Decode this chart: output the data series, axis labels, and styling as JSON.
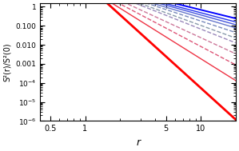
{
  "xlabel": "r",
  "ylabel": "S²(r)/S²(0)",
  "xlim": [
    0.41,
    20
  ],
  "ylim": [
    1e-06,
    1.5
  ],
  "figsize": [
    2.99,
    1.89
  ],
  "dpi": 100,
  "curves": [
    {
      "color": "#0000ff",
      "ls": "-",
      "lw": 1.4,
      "A": 0.52,
      "alpha": 1.5,
      "r0": 12.0,
      "bump": 0.12,
      "bp": 0.85,
      "bw": 0.08,
      "osc": 0.025
    },
    {
      "color": "#2233ee",
      "ls": "-",
      "lw": 1.0,
      "A": 0.48,
      "alpha": 1.6,
      "r0": 10.0,
      "bump": 0.1,
      "bp": 0.85,
      "bw": 0.08,
      "osc": 0.022
    },
    {
      "color": "#4455dd",
      "ls": "-",
      "lw": 1.0,
      "A": 0.44,
      "alpha": 1.7,
      "r0": 9.0,
      "bump": 0.08,
      "bp": 0.85,
      "bw": 0.08,
      "osc": 0.02
    },
    {
      "color": "#6677cc",
      "ls": "-",
      "lw": 1.0,
      "A": 0.4,
      "alpha": 1.8,
      "r0": 8.0,
      "bump": 0.07,
      "bp": 0.85,
      "bw": 0.08,
      "osc": 0.018
    },
    {
      "color": "#7788bb",
      "ls": "--",
      "lw": 1.0,
      "A": 0.36,
      "alpha": 2.0,
      "r0": 7.0,
      "bump": 0.06,
      "bp": 0.85,
      "bw": 0.08,
      "osc": 0.016
    },
    {
      "color": "#8899aa",
      "ls": "--",
      "lw": 1.0,
      "A": 0.32,
      "alpha": 2.2,
      "r0": 6.0,
      "bump": 0.05,
      "bp": 0.85,
      "bw": 0.08,
      "osc": 0.014
    },
    {
      "color": "#9988bb",
      "ls": "--",
      "lw": 1.0,
      "A": 0.28,
      "alpha": 2.4,
      "r0": 5.5,
      "bump": 0.04,
      "bp": 0.85,
      "bw": 0.08,
      "osc": 0.012
    },
    {
      "color": "#cc7799",
      "ls": "--",
      "lw": 1.0,
      "A": 0.22,
      "alpha": 2.8,
      "r0": 4.5,
      "bump": 0.04,
      "bp": 0.85,
      "bw": 0.07,
      "osc": 0.012
    },
    {
      "color": "#dd5577",
      "ls": "--",
      "lw": 1.0,
      "A": 0.18,
      "alpha": 3.2,
      "r0": 3.8,
      "bump": 0.03,
      "bp": 0.85,
      "bw": 0.07,
      "osc": 0.01
    },
    {
      "color": "#ee3344",
      "ls": "-",
      "lw": 1.0,
      "A": 0.14,
      "alpha": 3.8,
      "r0": 3.2,
      "bump": 0.03,
      "bp": 0.85,
      "bw": 0.07,
      "osc": 0.01
    },
    {
      "color": "#ff0000",
      "ls": "-",
      "lw": 2.0,
      "A": 0.11,
      "alpha": 5.5,
      "r0": 2.5,
      "bump": 0.02,
      "bp": 0.85,
      "bw": 0.06,
      "osc": 0.008
    }
  ]
}
